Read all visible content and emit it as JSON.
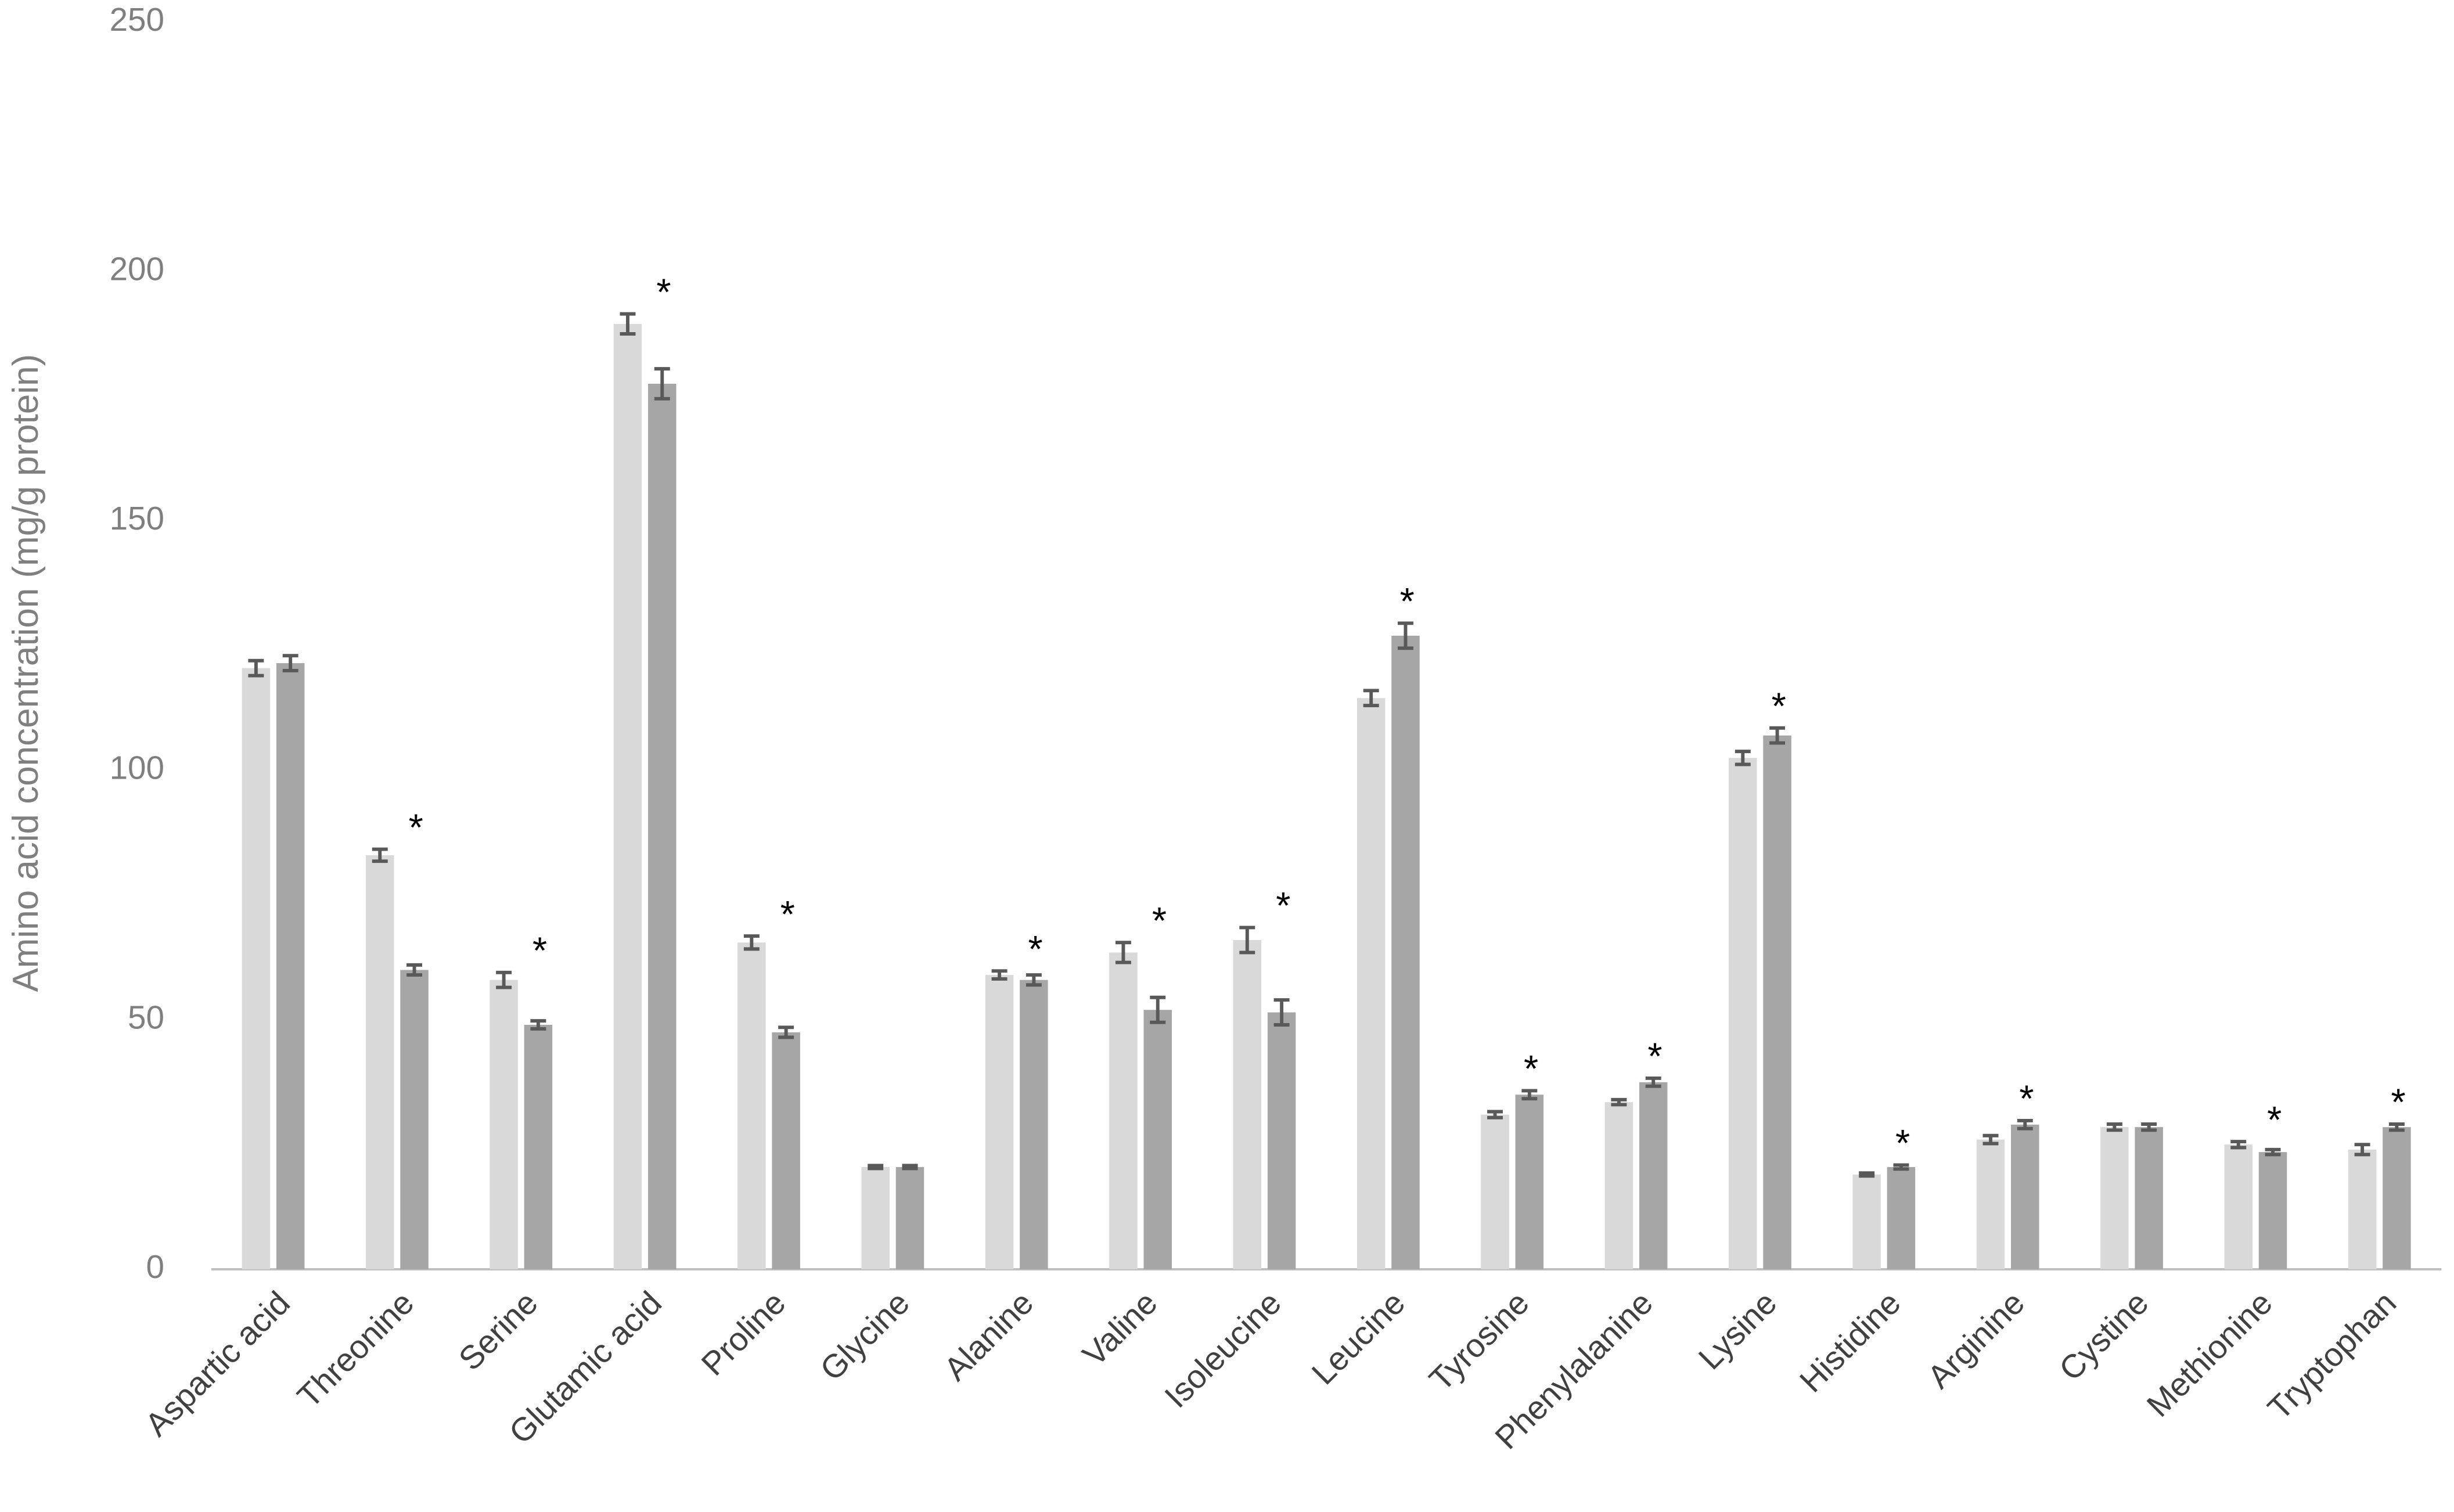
{
  "chart_data": {
    "type": "bar",
    "y_label": "Amino acid concentration (mg/g protein)",
    "categories": [
      "Aspartic acid",
      "Threonine",
      "Serine",
      "Glutamic acid",
      "Proline",
      "Glycine",
      "Alanine",
      "Valine",
      "Isoleucine",
      "Leucine",
      "Tyrosine",
      "Phenylalanine",
      "Lysine",
      "Histidine",
      "Arginine",
      "Cystine",
      "Methionine",
      "Tryptophan"
    ],
    "series": [
      {
        "color": "#d9d9d9",
        "values": [
          120.5,
          83,
          58,
          189.5,
          65.5,
          20.5,
          59,
          63.5,
          66,
          114.5,
          31,
          33.5,
          102.5,
          19,
          26,
          28.5,
          25,
          24
        ],
        "errors": [
          1.5,
          1.2,
          1.5,
          2,
          1.3,
          0.3,
          0.8,
          2,
          2.5,
          1.5,
          0.6,
          0.5,
          1.3,
          0.3,
          0.8,
          0.6,
          0.6,
          1
        ]
      },
      {
        "color": "#a6a6a6",
        "values": [
          121.5,
          60,
          49,
          177.5,
          47.5,
          20.5,
          58,
          52,
          51.5,
          127,
          35,
          37.5,
          107,
          20.5,
          29,
          28.5,
          23.5,
          28.5
        ],
        "errors": [
          1.5,
          1,
          0.8,
          3,
          1,
          0.3,
          1,
          2.5,
          2.5,
          2.5,
          0.8,
          0.8,
          1.5,
          0.4,
          0.8,
          0.6,
          0.5,
          0.6
        ]
      }
    ],
    "annotations": [
      null,
      "*",
      "*",
      "*",
      "*",
      null,
      "*",
      "*",
      "*",
      "*",
      "*",
      "*",
      "*",
      "*",
      "*",
      null,
      "*",
      "*"
    ],
    "error_color": "#595959",
    "ylim": [
      0,
      250
    ],
    "yticks": [
      0,
      50,
      100,
      150,
      200,
      250
    ],
    "grid": false
  }
}
